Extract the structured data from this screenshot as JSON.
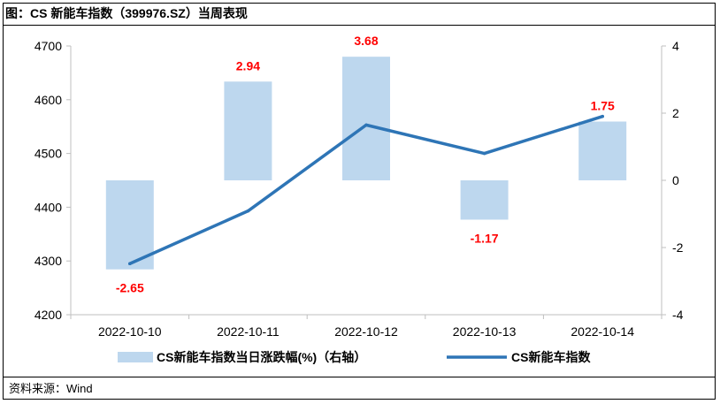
{
  "header": {
    "title": "图：CS 新能车指数（399976.SZ）当周表现"
  },
  "footer": {
    "source": "资料来源：Wind"
  },
  "chart_data": {
    "type": "bar",
    "categories": [
      "2022-10-10",
      "2022-10-11",
      "2022-10-12",
      "2022-10-13",
      "2022-10-14"
    ],
    "series": [
      {
        "name": "CS新能车指数当日涨跌幅(%)（右轴）",
        "type": "bar",
        "axis": "right",
        "values": [
          -2.65,
          2.94,
          3.68,
          -1.17,
          1.75
        ],
        "color": "#bdd7ee"
      },
      {
        "name": "CS新能车指数",
        "type": "line",
        "axis": "left",
        "values": [
          4295,
          4393,
          4553,
          4500,
          4569
        ],
        "color": "#2e75b6"
      }
    ],
    "left_axis": {
      "ylim": [
        4200,
        4700
      ],
      "ticks": [
        "4200",
        "4300",
        "4400",
        "4500",
        "4600",
        "4700"
      ]
    },
    "right_axis": {
      "ylim": [
        -4,
        4
      ],
      "ticks": [
        "-4",
        "-2",
        "0",
        "2",
        "4"
      ]
    },
    "data_labels": [
      "-2.65",
      "2.94",
      "3.68",
      "-1.17",
      "1.75"
    ],
    "label_color": "#ff0000",
    "grid": false,
    "legend_position": "bottom"
  }
}
